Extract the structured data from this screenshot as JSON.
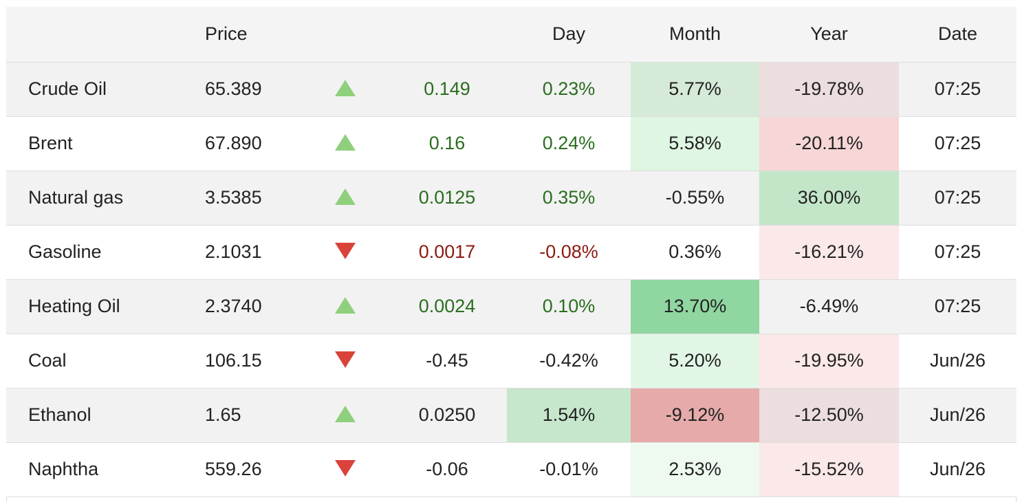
{
  "header": {
    "name": "",
    "price": "Price",
    "arrow": "",
    "change": "",
    "day": "Day",
    "month": "Month",
    "year": "Year",
    "date": "Date"
  },
  "colors": {
    "positive_text": "#2a6e1e",
    "negative_text": "#8b1a12",
    "arrow_up": "#8fd07c",
    "arrow_down": "#d9433a"
  },
  "rows": [
    {
      "name": "Crude Oil",
      "price": "65.389",
      "direction": "up",
      "change": "0.149",
      "change_tone": "pos",
      "day": "0.23%",
      "day_tone": "pos",
      "day_bg": "",
      "month": "5.77%",
      "month_bg": "#d5ead7",
      "year": "-19.78%",
      "year_bg": "#ecdede",
      "date": "07:25"
    },
    {
      "name": "Brent",
      "price": "67.890",
      "direction": "up",
      "change": "0.16",
      "change_tone": "pos",
      "day": "0.24%",
      "day_tone": "pos",
      "day_bg": "",
      "month": "5.58%",
      "month_bg": "#def6e2",
      "year": "-20.11%",
      "year_bg": "#f7d6d6",
      "date": "07:25"
    },
    {
      "name": "Natural gas",
      "price": "3.5385",
      "direction": "up",
      "change": "0.0125",
      "change_tone": "pos",
      "day": "0.35%",
      "day_tone": "pos",
      "day_bg": "",
      "month": "-0.55%",
      "month_bg": "",
      "year": "36.00%",
      "year_bg": "#c3e6c8",
      "date": "07:25"
    },
    {
      "name": "Gasoline",
      "price": "2.1031",
      "direction": "down",
      "change": "0.0017",
      "change_tone": "neg",
      "day": "-0.08%",
      "day_tone": "neg",
      "day_bg": "",
      "month": "0.36%",
      "month_bg": "",
      "year": "-16.21%",
      "year_bg": "#fbe8e8",
      "date": "07:25"
    },
    {
      "name": "Heating Oil",
      "price": "2.3740",
      "direction": "up",
      "change": "0.0024",
      "change_tone": "pos",
      "day": "0.10%",
      "day_tone": "pos",
      "day_bg": "",
      "month": "13.70%",
      "month_bg": "#8fd6a0",
      "year": "-6.49%",
      "year_bg": "",
      "date": "07:25"
    },
    {
      "name": "Coal",
      "price": "106.15",
      "direction": "down",
      "change": "-0.45",
      "change_tone": "",
      "day": "-0.42%",
      "day_tone": "",
      "day_bg": "",
      "month": "5.20%",
      "month_bg": "#e2f6e6",
      "year": "-19.95%",
      "year_bg": "#fbe8e8",
      "date": "Jun/26"
    },
    {
      "name": "Ethanol",
      "price": "1.65",
      "direction": "up",
      "change": "0.0250",
      "change_tone": "",
      "day": "1.54%",
      "day_tone": "",
      "day_bg": "#c7e7cc",
      "month": "-9.12%",
      "month_bg": "#e6aaaa",
      "year": "-12.50%",
      "year_bg": "#ecdede",
      "date": "Jun/26"
    },
    {
      "name": "Naphtha",
      "price": "559.26",
      "direction": "down",
      "change": "-0.06",
      "change_tone": "",
      "day": "-0.01%",
      "day_tone": "",
      "day_bg": "",
      "month": "2.53%",
      "month_bg": "#eefaf0",
      "year": "-15.52%",
      "year_bg": "#fbe8e8",
      "date": "Jun/26"
    }
  ]
}
